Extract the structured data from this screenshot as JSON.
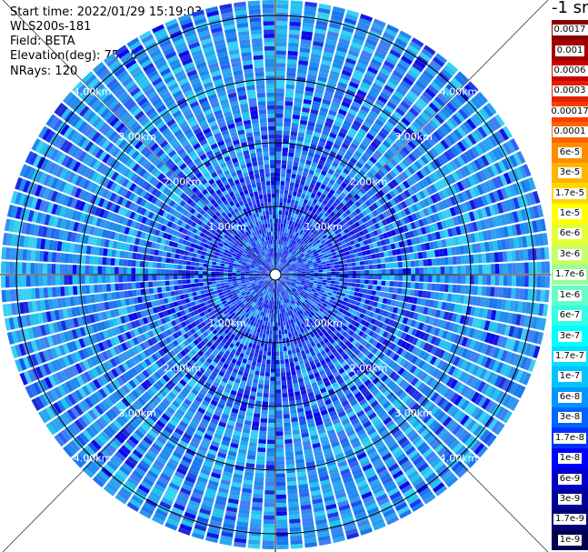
{
  "info": {
    "start_time": "Start time: 2022/01/29 15:19:03",
    "station": "WLS200s-181",
    "field": "Field: BETA",
    "elevation": "Elevation(deg): 75.00",
    "nrays": "NRays: 120"
  },
  "ring_labels": [
    "1.00km",
    "2.00km",
    "3.00km",
    "4.00km"
  ],
  "colorbar": {
    "unit": "-1 sr",
    "labels": [
      "0.0017",
      "0.001",
      "0.0006",
      "0.0003",
      "0.00017",
      "0.0001",
      "6e-5",
      "3e-5",
      "1.7e-5",
      "1e-5",
      "6e-6",
      "3e-6",
      "1.7e-6",
      "1e-6",
      "6e-7",
      "3e-7",
      "1.7e-7",
      "1e-7",
      "6e-8",
      "3e-8",
      "1.7e-8",
      "1e-8",
      "6e-9",
      "3e-9",
      "1.7e-9",
      "1e-9"
    ],
    "colors": [
      "#8b0000",
      "#a50000",
      "#cc0000",
      "#e61e00",
      "#ff3c00",
      "#ff6400",
      "#ff8c00",
      "#ffb400",
      "#ffd700",
      "#ffff00",
      "#e6ff32",
      "#c8ff64",
      "#96ff96",
      "#64ffc8",
      "#32ffe6",
      "#00ffff",
      "#00e1ff",
      "#00c3ff",
      "#0096ff",
      "#0064ff",
      "#0032ff",
      "#0000ff",
      "#0000cd",
      "#00009b",
      "#000078",
      "#000050"
    ],
    "label_colors": [
      "#ffffff",
      "#ffffff",
      "#ffffff",
      "#ffffff",
      "#000000",
      "#000000",
      "#000000",
      "#000000",
      "#000000",
      "#000000",
      "#000000",
      "#000000",
      "#000000",
      "#000000",
      "#000000",
      "#000000",
      "#000000",
      "#000000",
      "#000000",
      "#ffffff",
      "#ffffff",
      "#ffffff",
      "#ffffff",
      "#ffffff",
      "#ffffff",
      "#ffffff"
    ]
  },
  "colors": {
    "field_blue": "#2b6bf5",
    "field_dark": "#0a1ee6",
    "field_light": "#21b4f0",
    "ray_gap": "#ffffff",
    "ring": "#000000"
  }
}
